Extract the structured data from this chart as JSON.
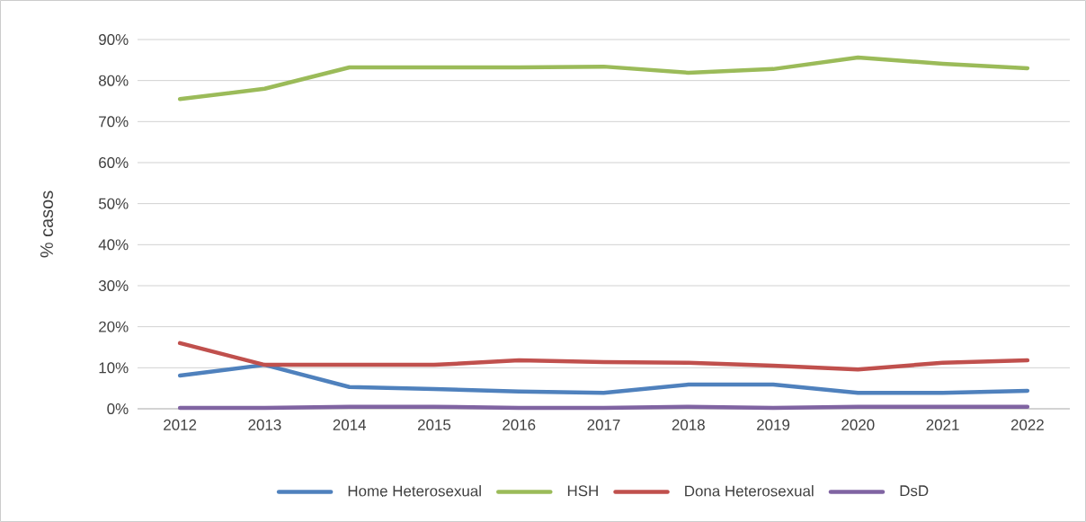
{
  "chart_data": {
    "type": "line",
    "ylabel": "% casos",
    "categories": [
      "2012",
      "2013",
      "2014",
      "2015",
      "2016",
      "2017",
      "2018",
      "2019",
      "2020",
      "2021",
      "2022"
    ],
    "series": [
      {
        "name": "Home Heterosexual",
        "color": "#4f81bd",
        "values": [
          8.1,
          10.7,
          5.3,
          4.8,
          4.2,
          3.9,
          5.9,
          5.9,
          3.9,
          3.9,
          4.4
        ]
      },
      {
        "name": "HSH",
        "color": "#9bbb59",
        "values": [
          75.5,
          78,
          83.2,
          83.2,
          83.2,
          83.4,
          81.9,
          82.8,
          85.6,
          84.1,
          83
        ]
      },
      {
        "name": "Dona Heterosexual",
        "color": "#c0504d",
        "values": [
          16,
          10.7,
          10.7,
          10.7,
          11.8,
          11.4,
          11.2,
          10.5,
          9.6,
          11.2,
          11.8
        ]
      },
      {
        "name": "DsD",
        "color": "#8064a2",
        "values": [
          0.2,
          0.2,
          0.5,
          0.5,
          0.2,
          0.2,
          0.5,
          0.2,
          0.5,
          0.5,
          0.5
        ]
      }
    ],
    "ylim": [
      0,
      90
    ],
    "yticks": [
      {
        "value": 0,
        "label": "0%"
      },
      {
        "value": 10,
        "label": "10%"
      },
      {
        "value": 20,
        "label": "20%"
      },
      {
        "value": 30,
        "label": "30%"
      },
      {
        "value": 40,
        "label": "40%"
      },
      {
        "value": 50,
        "label": "50%"
      },
      {
        "value": 60,
        "label": "60%"
      },
      {
        "value": 70,
        "label": "70%"
      },
      {
        "value": 80,
        "label": "80%"
      },
      {
        "value": 90,
        "label": "90%"
      }
    ],
    "grid": "y",
    "legend": "bottom",
    "marker": "none",
    "line_style": "solid"
  }
}
